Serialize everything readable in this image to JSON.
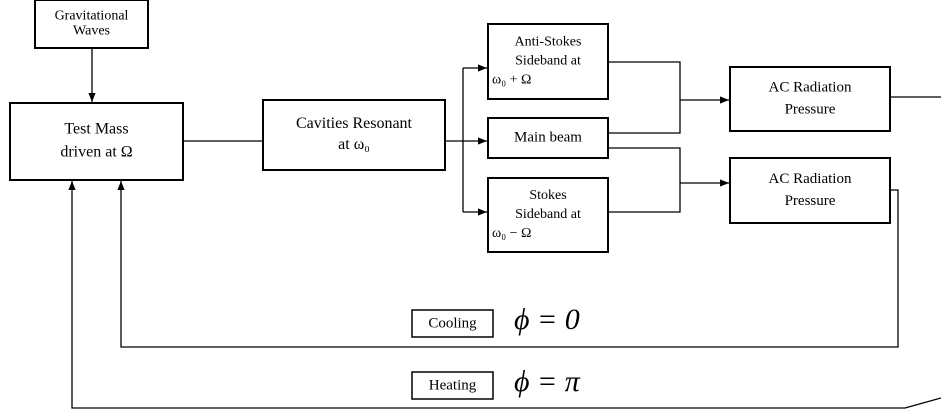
{
  "nodes": [
    {
      "lines": [
        "Gravitational",
        "Waves"
      ]
    },
    {
      "lines": [
        "Test Mass",
        "driven at Ω"
      ]
    },
    {
      "lines": [
        "Cavities Resonant",
        "at ω₀"
      ]
    },
    {
      "lines": [
        "Anti-Stokes",
        "Sideband at",
        "ω₀ + Ω"
      ]
    },
    {
      "lines": [
        "Main beam"
      ]
    },
    {
      "lines": [
        "Stokes",
        "Sideband at",
        "ω₀ − Ω"
      ]
    },
    {
      "lines": [
        "AC Radiation",
        "Pressure"
      ]
    },
    {
      "lines": [
        "AC Radiation",
        "Pressure"
      ]
    }
  ],
  "labels": [
    {
      "tag": "Cooling",
      "formula": "ϕ = 0"
    },
    {
      "tag": "Heating",
      "formula": "ϕ = π"
    }
  ]
}
